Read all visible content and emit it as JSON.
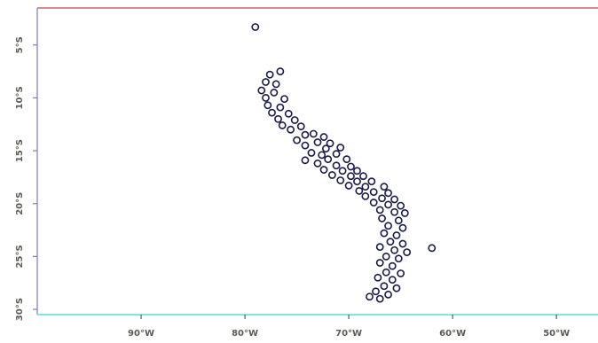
{
  "chart_data": {
    "type": "scatter",
    "title": "",
    "xlabel": "",
    "ylabel": "",
    "xlim": [
      -100,
      -46
    ],
    "ylim": [
      -30.5,
      -1.5
    ],
    "x_ticks": [
      {
        "value": -90,
        "label": "90°W"
      },
      {
        "value": -80,
        "label": "80°W"
      },
      {
        "value": -70,
        "label": "70°W"
      },
      {
        "value": -60,
        "label": "60°W"
      },
      {
        "value": -50,
        "label": "50°W"
      }
    ],
    "y_ticks": [
      {
        "value": -5,
        "label": "5°S"
      },
      {
        "value": -10,
        "label": "10°S"
      },
      {
        "value": -15,
        "label": "15°S"
      },
      {
        "value": -20,
        "label": "20°S"
      },
      {
        "value": -25,
        "label": "25°S"
      },
      {
        "value": -30,
        "label": "30°S"
      }
    ],
    "grid": false,
    "colors": {
      "points": "#1a1a4a",
      "top_axis": "#b34a4a",
      "bottom_axis": "#7fe6e6",
      "left_axis": "#7a7acc"
    },
    "points": [
      [
        -79.0,
        -3.3
      ],
      [
        -76.6,
        -7.5
      ],
      [
        -77.6,
        -7.8
      ],
      [
        -78.0,
        -8.5
      ],
      [
        -77.0,
        -8.7
      ],
      [
        -78.4,
        -9.3
      ],
      [
        -77.2,
        -9.5
      ],
      [
        -78.0,
        -10.0
      ],
      [
        -76.2,
        -10.1
      ],
      [
        -77.8,
        -10.7
      ],
      [
        -76.6,
        -10.9
      ],
      [
        -77.4,
        -11.4
      ],
      [
        -75.8,
        -11.5
      ],
      [
        -76.8,
        -12.0
      ],
      [
        -75.2,
        -12.1
      ],
      [
        -76.4,
        -12.6
      ],
      [
        -74.6,
        -12.7
      ],
      [
        -75.6,
        -13.0
      ],
      [
        -73.4,
        -13.4
      ],
      [
        -74.2,
        -13.5
      ],
      [
        -72.4,
        -13.7
      ],
      [
        -75.0,
        -14.0
      ],
      [
        -73.0,
        -14.2
      ],
      [
        -71.8,
        -14.3
      ],
      [
        -74.2,
        -14.5
      ],
      [
        -72.2,
        -14.8
      ],
      [
        -70.8,
        -14.7
      ],
      [
        -73.6,
        -15.2
      ],
      [
        -72.6,
        -15.4
      ],
      [
        -71.2,
        -15.3
      ],
      [
        -74.2,
        -15.9
      ],
      [
        -72.0,
        -15.8
      ],
      [
        -70.2,
        -15.8
      ],
      [
        -73.0,
        -16.2
      ],
      [
        -71.2,
        -16.4
      ],
      [
        -69.8,
        -16.5
      ],
      [
        -72.4,
        -16.8
      ],
      [
        -70.6,
        -16.9
      ],
      [
        -69.2,
        -16.9
      ],
      [
        -71.6,
        -17.3
      ],
      [
        -69.8,
        -17.4
      ],
      [
        -68.6,
        -17.4
      ],
      [
        -70.8,
        -17.8
      ],
      [
        -69.2,
        -17.9
      ],
      [
        -67.8,
        -17.9
      ],
      [
        -70.0,
        -18.3
      ],
      [
        -68.4,
        -18.4
      ],
      [
        -66.6,
        -18.4
      ],
      [
        -69.0,
        -18.8
      ],
      [
        -67.6,
        -18.9
      ],
      [
        -66.2,
        -19.0
      ],
      [
        -68.4,
        -19.3
      ],
      [
        -66.8,
        -19.5
      ],
      [
        -65.6,
        -19.6
      ],
      [
        -67.6,
        -19.9
      ],
      [
        -66.2,
        -20.1
      ],
      [
        -65.0,
        -20.2
      ],
      [
        -67.0,
        -20.6
      ],
      [
        -65.6,
        -20.8
      ],
      [
        -64.6,
        -20.9
      ],
      [
        -66.8,
        -21.4
      ],
      [
        -65.2,
        -21.6
      ],
      [
        -66.2,
        -22.1
      ],
      [
        -64.8,
        -22.3
      ],
      [
        -66.6,
        -22.8
      ],
      [
        -65.4,
        -23.0
      ],
      [
        -66.0,
        -23.6
      ],
      [
        -64.8,
        -23.8
      ],
      [
        -67.0,
        -24.1
      ],
      [
        -65.6,
        -24.4
      ],
      [
        -64.4,
        -24.6
      ],
      [
        -66.4,
        -25.0
      ],
      [
        -65.2,
        -25.2
      ],
      [
        -67.0,
        -25.6
      ],
      [
        -65.8,
        -25.9
      ],
      [
        -66.4,
        -26.5
      ],
      [
        -65.0,
        -26.6
      ],
      [
        -67.2,
        -27.0
      ],
      [
        -65.8,
        -27.2
      ],
      [
        -66.6,
        -27.8
      ],
      [
        -65.4,
        -28.0
      ],
      [
        -67.4,
        -28.3
      ],
      [
        -66.2,
        -28.6
      ],
      [
        -67.0,
        -29.0
      ],
      [
        -68.0,
        -28.8
      ],
      [
        -62.0,
        -24.2
      ]
    ]
  }
}
